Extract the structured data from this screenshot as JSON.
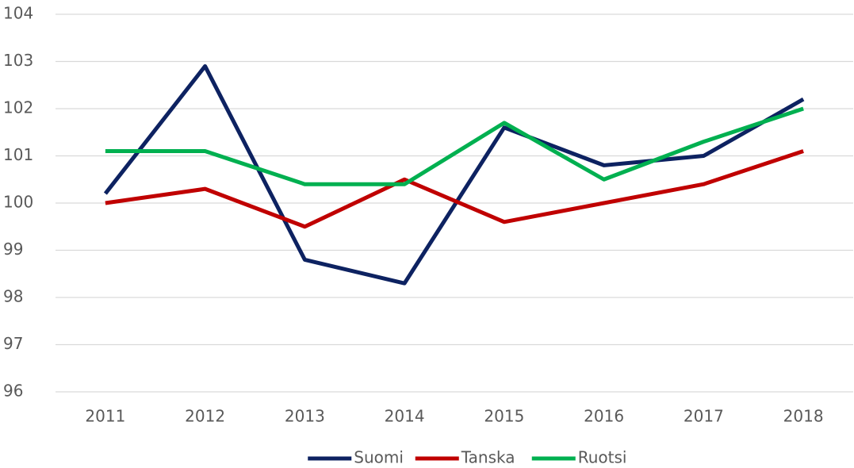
{
  "chart_data": {
    "type": "line",
    "categories": [
      "2011",
      "2012",
      "2013",
      "2014",
      "2015",
      "2016",
      "2017",
      "2018"
    ],
    "series": [
      {
        "name": "Suomi",
        "color": "#0d2261",
        "values": [
          100.2,
          102.9,
          98.8,
          98.3,
          101.6,
          100.8,
          101.0,
          102.2
        ]
      },
      {
        "name": "Tanska",
        "color": "#c00000",
        "values": [
          100.0,
          100.3,
          99.5,
          100.5,
          99.6,
          100.0,
          100.4,
          101.1
        ]
      },
      {
        "name": "Ruotsi",
        "color": "#00b050",
        "values": [
          101.1,
          101.1,
          100.4,
          100.4,
          101.7,
          100.5,
          101.3,
          102.0
        ]
      }
    ],
    "ylim": [
      96,
      104
    ],
    "yticks": [
      96,
      97,
      98,
      99,
      100,
      101,
      102,
      103,
      104
    ],
    "grid": true,
    "legend": "bottom"
  }
}
